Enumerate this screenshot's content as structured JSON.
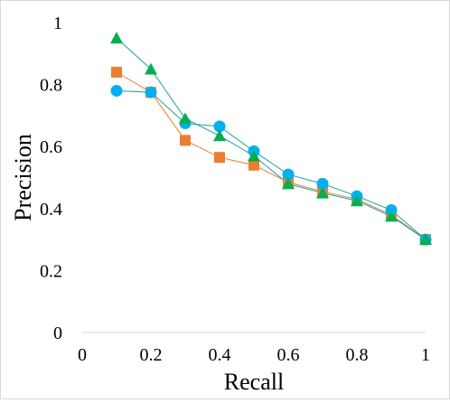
{
  "chart_data": {
    "type": "line",
    "title": "",
    "xlabel": "Recall",
    "ylabel": "Precision",
    "xlim": [
      0,
      1
    ],
    "ylim": [
      0,
      1
    ],
    "x_ticks": [
      0,
      0.2,
      0.4,
      0.6,
      0.8,
      1
    ],
    "x_tick_labels": [
      "0",
      "0.2",
      "0.4",
      "0.6",
      "0.8",
      "1"
    ],
    "y_ticks": [
      0,
      0.2,
      0.4,
      0.6,
      0.8,
      1
    ],
    "y_tick_labels": [
      "0",
      "0.2",
      "0.4",
      "0.6",
      "0.8",
      "1"
    ],
    "grid": false,
    "legend": "none",
    "x": [
      0.1,
      0.2,
      0.3,
      0.4,
      0.5,
      0.6,
      0.7,
      0.8,
      0.9,
      1.0
    ],
    "series": [
      {
        "marker": "square",
        "line_color": "#ed7d31",
        "marker_color": "#ed7d31",
        "values": [
          0.84,
          0.775,
          0.62,
          0.565,
          0.54,
          0.485,
          0.455,
          0.43,
          0.38,
          0.3
        ]
      },
      {
        "marker": "circle",
        "line_color": "#17a2a2",
        "marker_color": "#00b0f0",
        "values": [
          0.78,
          0.775,
          0.675,
          0.665,
          0.585,
          0.51,
          0.48,
          0.44,
          0.395,
          0.3
        ]
      },
      {
        "marker": "triangle",
        "line_color": "#17a2a2",
        "marker_color": "#00b050",
        "values": [
          0.95,
          0.85,
          0.69,
          0.635,
          0.57,
          0.48,
          0.45,
          0.425,
          0.375,
          0.3
        ]
      }
    ]
  }
}
